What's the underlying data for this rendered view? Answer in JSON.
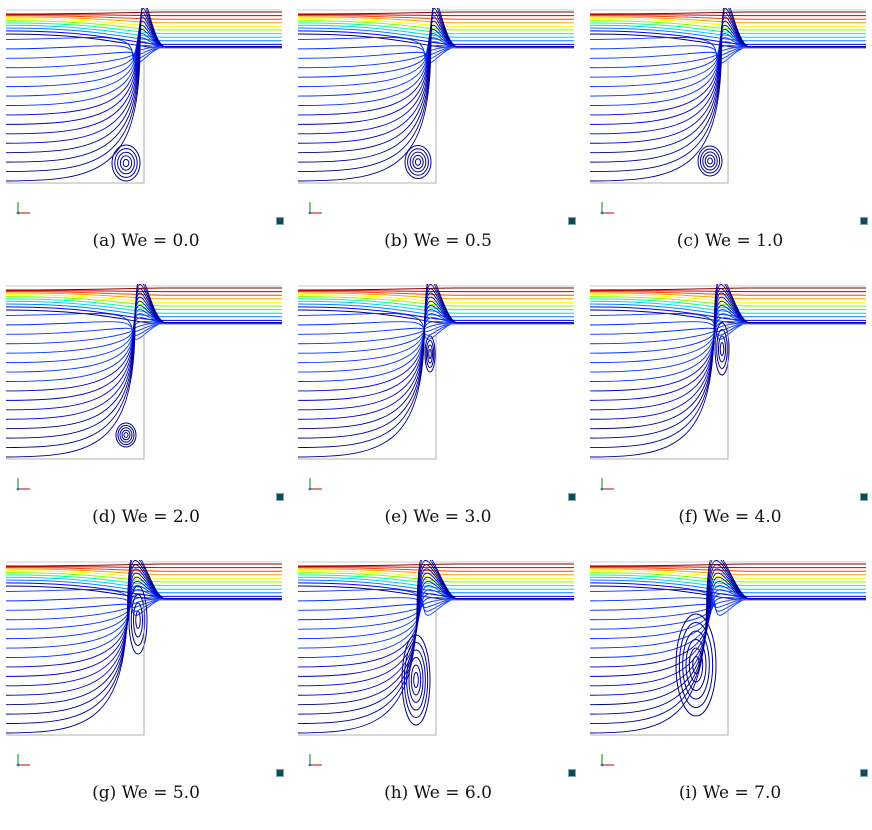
{
  "figure": {
    "panels": [
      {
        "caption": "(a) We = 0.0",
        "we": 0.0
      },
      {
        "caption": "(b) We = 0.5",
        "we": 0.5
      },
      {
        "caption": "(c) We = 1.0",
        "we": 1.0
      },
      {
        "caption": "(d) We = 2.0",
        "we": 2.0
      },
      {
        "caption": "(e) We = 3.0",
        "we": 3.0
      },
      {
        "caption": "(f) We = 4.0",
        "we": 4.0
      },
      {
        "caption": "(g) We = 5.0",
        "we": 5.0
      },
      {
        "caption": "(h) We = 6.0",
        "we": 6.0
      },
      {
        "caption": "(i) We = 7.0",
        "we": 7.0
      }
    ],
    "colormap": [
      "#00008b",
      "#0000ff",
      "#0080ff",
      "#00d0ff",
      "#00ffa0",
      "#80ff00",
      "#ffff00",
      "#ffa000",
      "#ff4000",
      "#cc0000",
      "#8b0000"
    ],
    "wall_color": "#999999",
    "axis_colors": {
      "x": "#d62728",
      "y": "#2ca02c",
      "z": "#1f77b4"
    },
    "corner_mark_color": "#0f4a55"
  }
}
